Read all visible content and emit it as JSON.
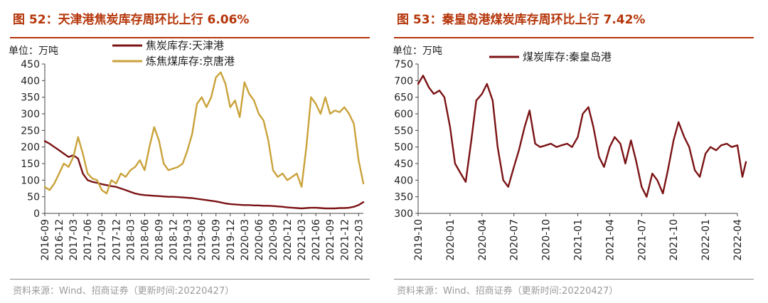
{
  "figures": [
    {
      "title": "图 52：天津港焦炭库存周环比上行 6.06%",
      "unit": "单位：万吨",
      "source": "资料来源：Wind、招商证券（更新时间:20220427）",
      "chart_data": {
        "type": "line",
        "ylim": [
          0,
          450
        ],
        "yticks": [
          0,
          50,
          100,
          150,
          200,
          250,
          300,
          350,
          400,
          450
        ],
        "x_range": [
          "2016-09",
          "2022-04"
        ],
        "xticks": [
          "2016-09",
          "2016-12",
          "2017-03",
          "2017-06",
          "2017-09",
          "2017-12",
          "2018-03",
          "2018-06",
          "2018-09",
          "2018-12",
          "2019-03",
          "2019-06",
          "2019-09",
          "2019-12",
          "2020-03",
          "2020-06",
          "2020-09",
          "2020-12",
          "2021-03",
          "2021-06",
          "2021-09",
          "2021-12",
          "2022-03"
        ],
        "legend_position": "top",
        "grid": false,
        "series": [
          {
            "name": "焦炭库存:天津港",
            "color": "#7b1315",
            "points": [
              [
                "2016-09",
                218
              ],
              [
                "2016-10",
                210
              ],
              [
                "2016-11",
                200
              ],
              [
                "2016-12",
                190
              ],
              [
                "2017-01",
                180
              ],
              [
                "2017-02",
                170
              ],
              [
                "2017-03",
                175
              ],
              [
                "2017-04",
                165
              ],
              [
                "2017-05",
                120
              ],
              [
                "2017-06",
                100
              ],
              [
                "2017-07",
                95
              ],
              [
                "2017-08",
                92
              ],
              [
                "2017-09",
                88
              ],
              [
                "2017-10",
                85
              ],
              [
                "2017-11",
                82
              ],
              [
                "2017-12",
                80
              ],
              [
                "2018-01",
                75
              ],
              [
                "2018-02",
                70
              ],
              [
                "2018-03",
                65
              ],
              [
                "2018-04",
                60
              ],
              [
                "2018-05",
                57
              ],
              [
                "2018-06",
                55
              ],
              [
                "2018-07",
                54
              ],
              [
                "2018-08",
                53
              ],
              [
                "2018-09",
                52
              ],
              [
                "2018-10",
                51
              ],
              [
                "2018-11",
                50
              ],
              [
                "2018-12",
                50
              ],
              [
                "2019-01",
                49
              ],
              [
                "2019-02",
                48
              ],
              [
                "2019-03",
                47
              ],
              [
                "2019-04",
                46
              ],
              [
                "2019-05",
                44
              ],
              [
                "2019-06",
                42
              ],
              [
                "2019-07",
                40
              ],
              [
                "2019-08",
                38
              ],
              [
                "2019-09",
                36
              ],
              [
                "2019-10",
                33
              ],
              [
                "2019-11",
                30
              ],
              [
                "2019-12",
                28
              ],
              [
                "2020-01",
                27
              ],
              [
                "2020-02",
                26
              ],
              [
                "2020-03",
                25
              ],
              [
                "2020-04",
                25
              ],
              [
                "2020-05",
                24
              ],
              [
                "2020-06",
                24
              ],
              [
                "2020-07",
                23
              ],
              [
                "2020-08",
                23
              ],
              [
                "2020-09",
                22
              ],
              [
                "2020-10",
                21
              ],
              [
                "2020-11",
                20
              ],
              [
                "2020-12",
                18
              ],
              [
                "2021-01",
                17
              ],
              [
                "2021-02",
                16
              ],
              [
                "2021-03",
                15
              ],
              [
                "2021-04",
                16
              ],
              [
                "2021-05",
                17
              ],
              [
                "2021-06",
                17
              ],
              [
                "2021-07",
                16
              ],
              [
                "2021-08",
                15
              ],
              [
                "2021-09",
                15
              ],
              [
                "2021-10",
                15
              ],
              [
                "2021-11",
                16
              ],
              [
                "2021-12",
                16
              ],
              [
                "2022-01",
                17
              ],
              [
                "2022-02",
                20
              ],
              [
                "2022-03",
                25
              ],
              [
                "2022-04",
                34
              ]
            ]
          },
          {
            "name": "炼焦煤库存:京唐港",
            "color": "#c9a23a",
            "points": [
              [
                "2016-09",
                80
              ],
              [
                "2016-10",
                70
              ],
              [
                "2016-11",
                90
              ],
              [
                "2016-12",
                120
              ],
              [
                "2017-01",
                150
              ],
              [
                "2017-02",
                140
              ],
              [
                "2017-03",
                170
              ],
              [
                "2017-04",
                230
              ],
              [
                "2017-05",
                180
              ],
              [
                "2017-06",
                120
              ],
              [
                "2017-07",
                105
              ],
              [
                "2017-08",
                100
              ],
              [
                "2017-09",
                70
              ],
              [
                "2017-10",
                60
              ],
              [
                "2017-11",
                100
              ],
              [
                "2017-12",
                90
              ],
              [
                "2018-01",
                120
              ],
              [
                "2018-02",
                110
              ],
              [
                "2018-03",
                130
              ],
              [
                "2018-04",
                140
              ],
              [
                "2018-05",
                160
              ],
              [
                "2018-06",
                130
              ],
              [
                "2018-07",
                200
              ],
              [
                "2018-08",
                260
              ],
              [
                "2018-09",
                220
              ],
              [
                "2018-10",
                150
              ],
              [
                "2018-11",
                130
              ],
              [
                "2018-12",
                135
              ],
              [
                "2019-01",
                140
              ],
              [
                "2019-02",
                150
              ],
              [
                "2019-03",
                190
              ],
              [
                "2019-04",
                240
              ],
              [
                "2019-05",
                330
              ],
              [
                "2019-06",
                350
              ],
              [
                "2019-07",
                320
              ],
              [
                "2019-08",
                350
              ],
              [
                "2019-09",
                410
              ],
              [
                "2019-10",
                425
              ],
              [
                "2019-11",
                390
              ],
              [
                "2019-12",
                320
              ],
              [
                "2020-01",
                340
              ],
              [
                "2020-02",
                290
              ],
              [
                "2020-03",
                395
              ],
              [
                "2020-04",
                360
              ],
              [
                "2020-05",
                340
              ],
              [
                "2020-06",
                300
              ],
              [
                "2020-07",
                280
              ],
              [
                "2020-08",
                220
              ],
              [
                "2020-09",
                130
              ],
              [
                "2020-10",
                110
              ],
              [
                "2020-11",
                120
              ],
              [
                "2020-12",
                100
              ],
              [
                "2021-01",
                110
              ],
              [
                "2021-02",
                120
              ],
              [
                "2021-03",
                80
              ],
              [
                "2021-04",
                200
              ],
              [
                "2021-05",
                350
              ],
              [
                "2021-06",
                330
              ],
              [
                "2021-07",
                300
              ],
              [
                "2021-08",
                350
              ],
              [
                "2021-09",
                300
              ],
              [
                "2021-10",
                310
              ],
              [
                "2021-11",
                305
              ],
              [
                "2021-12",
                320
              ],
              [
                "2022-01",
                300
              ],
              [
                "2022-02",
                270
              ],
              [
                "2022-03",
                160
              ],
              [
                "2022-04",
                90
              ]
            ]
          }
        ]
      }
    },
    {
      "title": "图 53：秦皇岛港煤炭库存周环比上行 7.42%",
      "unit": "单位：万吨",
      "source": "资料来源：Wind、招商证券（更新时间:20220427）",
      "chart_data": {
        "type": "line",
        "ylim": [
          300,
          750
        ],
        "yticks": [
          300,
          350,
          400,
          450,
          500,
          550,
          600,
          650,
          700,
          750
        ],
        "x_range": [
          "2019-10",
          "2022-04"
        ],
        "xticks": [
          "2019-10",
          "2020-01",
          "2020-04",
          "2020-07",
          "2020-10",
          "2021-01",
          "2021-04",
          "2021-07",
          "2021-10",
          "2022-01",
          "2022-04"
        ],
        "legend_position": "top",
        "grid": false,
        "series": [
          {
            "name": "煤炭库存:秦皇岛港",
            "color": "#7b1315",
            "points": [
              [
                "2019-10",
                690
              ],
              [
                "2019-10-15",
                715
              ],
              [
                "2019-11",
                680
              ],
              [
                "2019-11-15",
                660
              ],
              [
                "2019-12",
                670
              ],
              [
                "2019-12-15",
                650
              ],
              [
                "2020-01",
                560
              ],
              [
                "2020-01-15",
                450
              ],
              [
                "2020-02",
                420
              ],
              [
                "2020-02-15",
                395
              ],
              [
                "2020-03",
                520
              ],
              [
                "2020-03-15",
                640
              ],
              [
                "2020-04",
                660
              ],
              [
                "2020-04-15",
                690
              ],
              [
                "2020-05",
                640
              ],
              [
                "2020-05-15",
                500
              ],
              [
                "2020-06",
                400
              ],
              [
                "2020-06-15",
                380
              ],
              [
                "2020-07",
                440
              ],
              [
                "2020-07-15",
                490
              ],
              [
                "2020-08",
                560
              ],
              [
                "2020-08-15",
                610
              ],
              [
                "2020-09",
                510
              ],
              [
                "2020-09-15",
                500
              ],
              [
                "2020-10",
                505
              ],
              [
                "2020-10-15",
                510
              ],
              [
                "2020-11",
                500
              ],
              [
                "2020-11-15",
                505
              ],
              [
                "2020-12",
                510
              ],
              [
                "2020-12-15",
                500
              ],
              [
                "2021-01",
                530
              ],
              [
                "2021-01-15",
                600
              ],
              [
                "2021-02",
                620
              ],
              [
                "2021-02-15",
                560
              ],
              [
                "2021-03",
                470
              ],
              [
                "2021-03-15",
                440
              ],
              [
                "2021-04",
                500
              ],
              [
                "2021-04-15",
                530
              ],
              [
                "2021-05",
                510
              ],
              [
                "2021-05-15",
                450
              ],
              [
                "2021-06",
                520
              ],
              [
                "2021-06-15",
                460
              ],
              [
                "2021-07",
                380
              ],
              [
                "2021-07-15",
                350
              ],
              [
                "2021-08",
                420
              ],
              [
                "2021-08-15",
                400
              ],
              [
                "2021-09",
                360
              ],
              [
                "2021-09-15",
                430
              ],
              [
                "2021-10",
                520
              ],
              [
                "2021-10-15",
                575
              ],
              [
                "2021-11",
                530
              ],
              [
                "2021-11-15",
                500
              ],
              [
                "2021-12",
                430
              ],
              [
                "2021-12-15",
                410
              ],
              [
                "2022-01",
                480
              ],
              [
                "2022-01-15",
                500
              ],
              [
                "2022-02",
                490
              ],
              [
                "2022-02-15",
                505
              ],
              [
                "2022-03",
                510
              ],
              [
                "2022-03-15",
                500
              ],
              [
                "2022-04",
                505
              ],
              [
                "2022-04-15",
                410
              ],
              [
                "2022-04-25",
                455
              ]
            ]
          }
        ]
      }
    }
  ]
}
